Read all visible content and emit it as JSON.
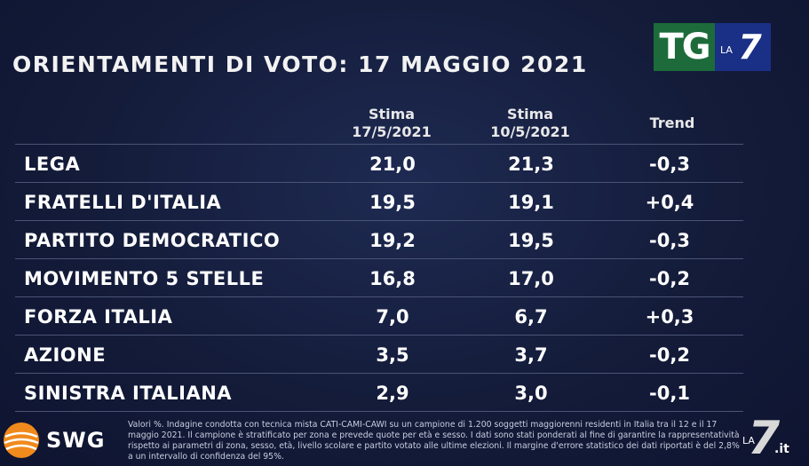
{
  "title": "ORIENTAMENTI DI VOTO: 17 MAGGIO 2021",
  "logo": {
    "tg": "TG",
    "la": "LA",
    "seven": "7"
  },
  "chart_data": {
    "type": "table",
    "columns": [
      {
        "line1": "Stima",
        "line2": "17/5/2021"
      },
      {
        "line1": "Stima",
        "line2": "10/5/2021"
      },
      {
        "line1": "Trend",
        "line2": ""
      }
    ],
    "rows": [
      {
        "party": "LEGA",
        "v1": "21,0",
        "v2": "21,3",
        "trend": "-0,3"
      },
      {
        "party": "FRATELLI D'ITALIA",
        "v1": "19,5",
        "v2": "19,1",
        "trend": "+0,4"
      },
      {
        "party": "PARTITO DEMOCRATICO",
        "v1": "19,2",
        "v2": "19,5",
        "trend": "-0,3"
      },
      {
        "party": "MOVIMENTO 5 STELLE",
        "v1": "16,8",
        "v2": "17,0",
        "trend": "-0,2"
      },
      {
        "party": "FORZA ITALIA",
        "v1": "7,0",
        "v2": "6,7",
        "trend": "+0,3"
      },
      {
        "party": "AZIONE",
        "v1": "3,5",
        "v2": "3,7",
        "trend": "-0,2"
      },
      {
        "party": "SINISTRA ITALIANA",
        "v1": "2,9",
        "v2": "3,0",
        "trend": "-0,1"
      }
    ]
  },
  "footer": {
    "source_name": "SWG",
    "note": "Valori %. Indagine condotta con tecnica mista CATI-CAMI-CAWI su un campione di 1.200 soggetti maggiorenni residenti in Italia tra il 12 e il 17 maggio 2021. Il campione è stratificato per zona e prevede quote per età e sesso. I dati sono stati ponderati al fine di garantire la rappresentatività rispetto ai parametri di zona, sesso, età, livello scolare e partito votato alle ultime elezioni. Il margine d'errore statistico dei dati riportati è del 2,8% a un intervallo di confidenza del 95%."
  },
  "channel_logo": {
    "la": "LA",
    "seven": "7",
    "it": ".it"
  }
}
